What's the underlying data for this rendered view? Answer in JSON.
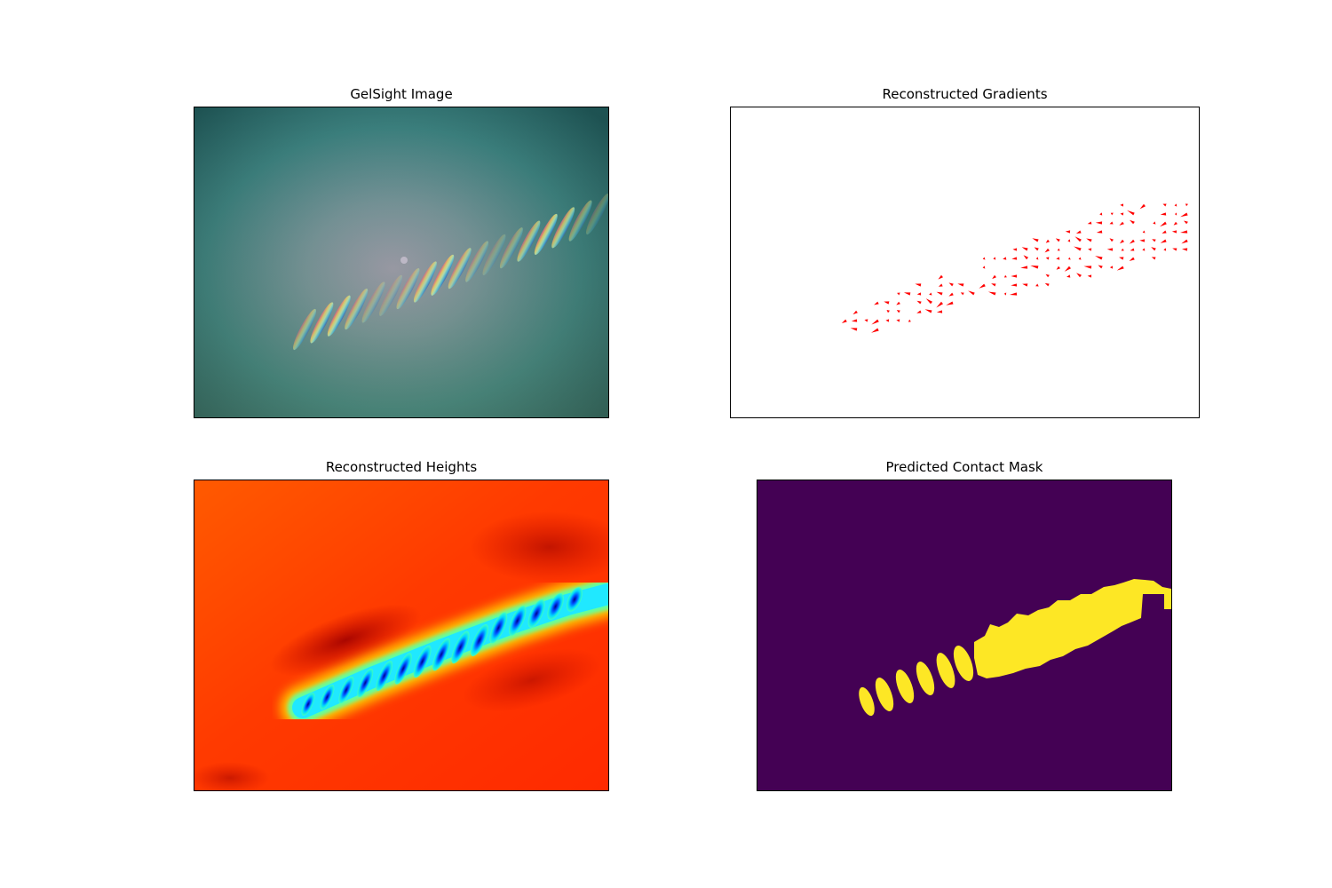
{
  "figure": {
    "panels": [
      {
        "title": "GelSight Image"
      },
      {
        "title": "Reconstructed Gradients",
        "arrow_color": "#ff0000"
      },
      {
        "title": "Reconstructed Heights",
        "colormap": "jet"
      },
      {
        "title": "Predicted Contact Mask",
        "colors": {
          "background": "#440154",
          "contact": "#fde725"
        }
      }
    ]
  }
}
